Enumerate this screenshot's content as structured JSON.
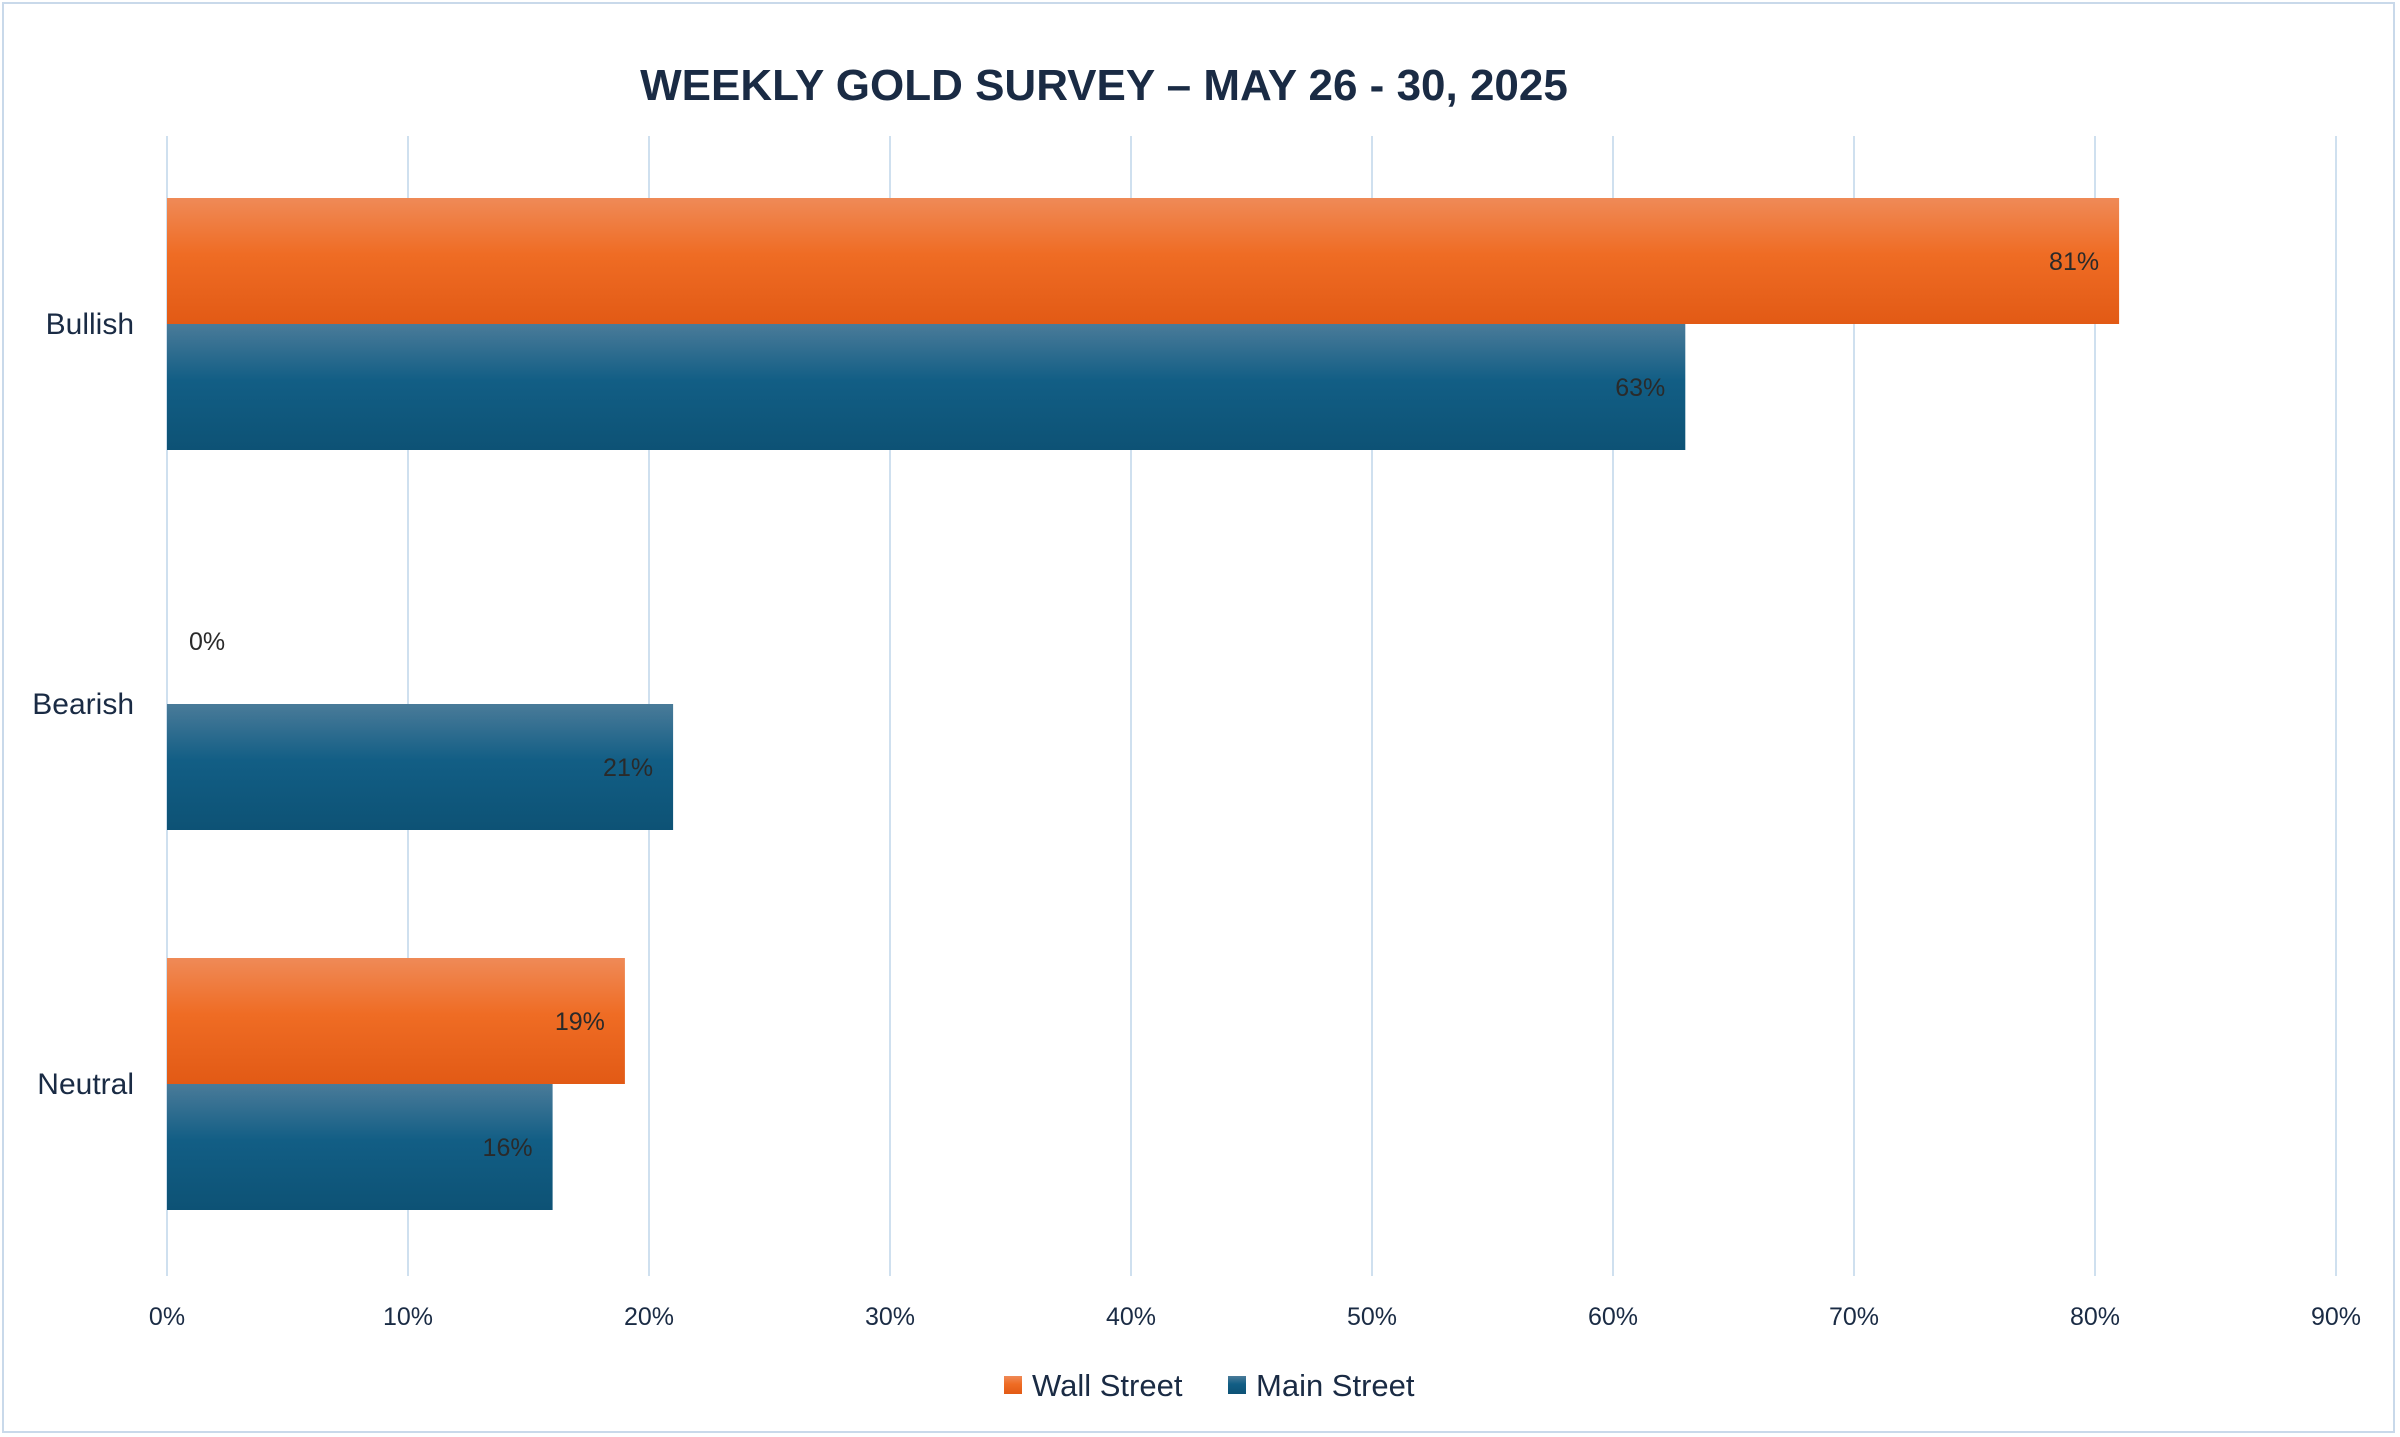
{
  "chart_data": {
    "type": "bar",
    "orientation": "horizontal",
    "title": "WEEKLY GOLD SURVEY – MAY 26 - 30, 2025",
    "categories": [
      "Bullish",
      "Bearish",
      "Neutral"
    ],
    "series": [
      {
        "name": "Wall Street",
        "color": "#ed6a22",
        "values": [
          81,
          0,
          19
        ],
        "labels": [
          "81%",
          "0%",
          "19%"
        ]
      },
      {
        "name": "Main Street",
        "color": "#135d83",
        "values": [
          63,
          21,
          16
        ],
        "labels": [
          "63%",
          "21%",
          "16%"
        ]
      }
    ],
    "xlim": [
      0,
      90
    ],
    "x_ticks": [
      0,
      10,
      20,
      30,
      40,
      50,
      60,
      70,
      80,
      90
    ],
    "x_tick_labels": [
      "0%",
      "10%",
      "20%",
      "30%",
      "40%",
      "50%",
      "60%",
      "70%",
      "80%",
      "90%"
    ],
    "xlabel": "",
    "ylabel": "",
    "grid": "vertical",
    "legend_position": "bottom"
  },
  "colors": {
    "gridline": "#cfe0ef",
    "border": "#c9d9ea",
    "text": "#1a2b44"
  }
}
